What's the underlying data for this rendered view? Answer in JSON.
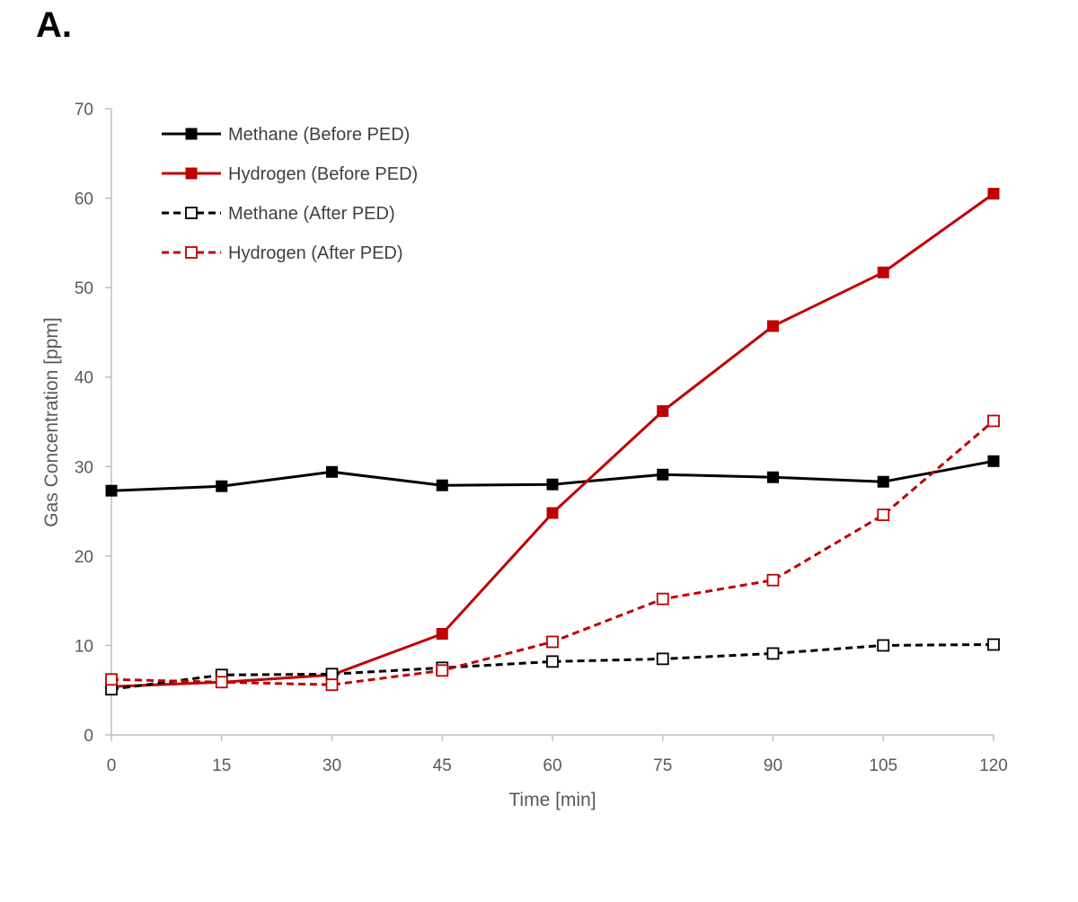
{
  "panel_label": "A.",
  "chart_data": {
    "type": "line",
    "title": "",
    "xlabel": "Time [min]",
    "ylabel": "Gas Concentration [ppm]",
    "x": [
      0,
      15,
      30,
      45,
      60,
      75,
      90,
      105,
      120
    ],
    "x_tick_labels": [
      "0",
      "15",
      "30",
      "45",
      "60",
      "75",
      "90",
      "105",
      "120"
    ],
    "xlim": [
      0,
      120
    ],
    "ylim": [
      0,
      70
    ],
    "y_ticks": [
      0,
      10,
      20,
      30,
      40,
      50,
      60,
      70
    ],
    "grid": false,
    "legend_position": "top-left",
    "series": [
      {
        "name": "Methane (Before PED)",
        "color": "#000000",
        "line_style": "solid",
        "marker": "filled-square",
        "values": [
          27.3,
          27.8,
          29.4,
          27.9,
          28.0,
          29.1,
          28.8,
          28.3,
          30.6
        ]
      },
      {
        "name": "Hydrogen (Before PED)",
        "color": "#c00000",
        "line_style": "solid",
        "marker": "filled-square",
        "values": [
          5.4,
          5.9,
          6.7,
          11.3,
          24.8,
          36.2,
          45.7,
          51.7,
          60.5
        ]
      },
      {
        "name": "Methane (After PED)",
        "color": "#000000",
        "line_style": "dashed",
        "marker": "open-square",
        "values": [
          5.1,
          6.7,
          6.8,
          7.5,
          8.2,
          8.5,
          9.1,
          10.0,
          10.1
        ]
      },
      {
        "name": "Hydrogen (After PED)",
        "color": "#c00000",
        "line_style": "dashed",
        "marker": "open-square",
        "values": [
          6.2,
          5.9,
          5.6,
          7.2,
          10.4,
          15.2,
          17.3,
          24.6,
          35.1
        ]
      }
    ]
  }
}
